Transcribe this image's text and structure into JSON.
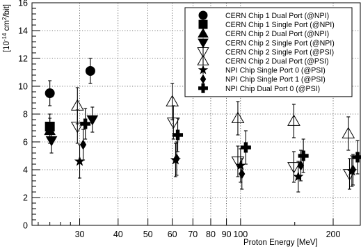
{
  "chart_data": {
    "type": "scatter",
    "title": "",
    "xlabel": "Proton Energy [MeV]",
    "ylabel": "[10^-14 cm^2/bit]",
    "ylabel_parts": {
      "prefix": "[10",
      "exponent": "-14",
      "middle": " cm",
      "square": "2",
      "suffix": "/bit]"
    },
    "xscale": "log",
    "xlim": [
      21,
      245
    ],
    "ylim": [
      0,
      16
    ],
    "grid": true,
    "legend_position": "top-right",
    "y_ticks": [
      0,
      2,
      4,
      6,
      8,
      10,
      12,
      14,
      16
    ],
    "y_tick_labels": [
      "0",
      "2",
      "4",
      "6",
      "8",
      "10",
      "12",
      "14",
      "16"
    ],
    "x_ticks": [
      30,
      40,
      50,
      60,
      70,
      80,
      90,
      100,
      200
    ],
    "x_tick_labels": [
      "30",
      "40",
      "50",
      "60",
      "70",
      "80",
      "90",
      "100",
      "200"
    ],
    "series": [
      {
        "name": "CERN Chip 1 Dual Port (@NPI)",
        "marker": "circle",
        "points": [
          {
            "x": 24.0,
            "y": 9.5,
            "err": 0.9
          },
          {
            "x": 32.5,
            "y": 11.1,
            "err": 0.9
          }
        ]
      },
      {
        "name": "CERN Chip 1 Single Port (@NPI)",
        "marker": "square",
        "points": [
          {
            "x": 24.0,
            "y": 7.1,
            "err": 0.9
          }
        ]
      },
      {
        "name": "CERN Chip 2 Dual Port (@NPI)",
        "marker": "triangle-up",
        "points": [
          {
            "x": 24.0,
            "y": 6.8,
            "err": 0.9
          }
        ]
      },
      {
        "name": "CERN Chip 2 Single Port (@NPI)",
        "marker": "triangle-down",
        "points": [
          {
            "x": 24.3,
            "y": 6.1,
            "err": 0.9
          },
          {
            "x": 33.0,
            "y": 7.6,
            "err": 0.9
          }
        ]
      },
      {
        "name": "CERN Chip 2 Single Port (@PSI)",
        "marker": "triangle-down-open",
        "points": [
          {
            "x": 29.5,
            "y": 7.1,
            "err": 1.2
          },
          {
            "x": 60.5,
            "y": 7.4,
            "err": 1.2
          },
          {
            "x": 98,
            "y": 4.6,
            "err": 1.1
          },
          {
            "x": 149,
            "y": 4.2,
            "err": 1.1
          },
          {
            "x": 226,
            "y": 3.7,
            "err": 1.1
          }
        ]
      },
      {
        "name": "CERN Chip 2 Dual Port (@PSI)",
        "marker": "triangle-up-open",
        "points": [
          {
            "x": 29.5,
            "y": 8.6,
            "err": 1.3
          },
          {
            "x": 60.0,
            "y": 8.9,
            "err": 1.3
          },
          {
            "x": 98,
            "y": 7.7,
            "err": 1.2
          },
          {
            "x": 149,
            "y": 7.5,
            "err": 1.2
          },
          {
            "x": 224,
            "y": 6.6,
            "err": 1.2
          }
        ]
      },
      {
        "name": "NPI Chip Single Port 0 (@PSI)",
        "marker": "star",
        "points": [
          {
            "x": 30.0,
            "y": 4.6,
            "err": 1.2
          },
          {
            "x": 61.5,
            "y": 4.7,
            "err": 1.2
          },
          {
            "x": 100,
            "y": 4.3,
            "err": 1.2
          },
          {
            "x": 154,
            "y": 3.5,
            "err": 1.1
          },
          {
            "x": 230,
            "y": 3.9,
            "err": 1.1
          }
        ]
      },
      {
        "name": "NPI Chip Single Port 1 (@PSI)",
        "marker": "diamond",
        "points": [
          {
            "x": 30.8,
            "y": 5.8,
            "err": 1.1
          },
          {
            "x": 62.0,
            "y": 4.8,
            "err": 1.2
          },
          {
            "x": 101,
            "y": 3.7,
            "err": 1.1
          },
          {
            "x": 157,
            "y": 4.3,
            "err": 1.1
          },
          {
            "x": 232,
            "y": 4.0,
            "err": 1.1
          }
        ]
      },
      {
        "name": "NPI Chip Dual Port 0 (@PSI)",
        "marker": "cross",
        "points": [
          {
            "x": 31.3,
            "y": 7.3,
            "err": 1.1
          },
          {
            "x": 62.5,
            "y": 6.5,
            "err": 1.2
          },
          {
            "x": 104,
            "y": 5.6,
            "err": 1.2
          },
          {
            "x": 160,
            "y": 5.0,
            "err": 1.2
          },
          {
            "x": 240,
            "y": 4.9,
            "err": 1.2
          }
        ]
      }
    ]
  }
}
